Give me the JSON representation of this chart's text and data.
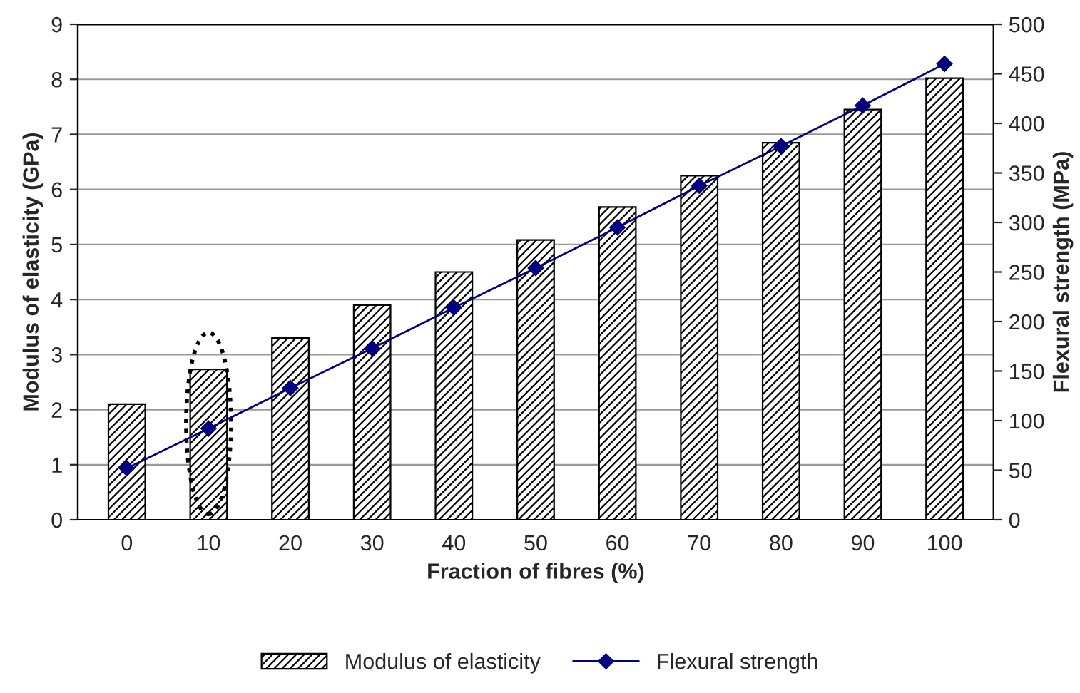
{
  "chart_data": {
    "type": "bar",
    "xlabel": "Fraction of fibres (%)",
    "ylabel": "Modulus of elasticity (GPa)",
    "y2label": "Flexural strength (MPa)",
    "categories": [
      "0",
      "10",
      "20",
      "30",
      "40",
      "50",
      "60",
      "70",
      "80",
      "90",
      "100"
    ],
    "series": [
      {
        "name": "Modulus of elasticity",
        "color": "#000000",
        "values": [
          2.1,
          2.73,
          3.3,
          3.9,
          4.5,
          5.08,
          5.68,
          6.25,
          6.85,
          7.45,
          8.02
        ]
      },
      {
        "name": "Flexural strength",
        "type": "line",
        "axis": "y2",
        "color": "#000080",
        "values": [
          52,
          92,
          133,
          173,
          214,
          254,
          295,
          337,
          377,
          418,
          460
        ]
      }
    ],
    "ylim": [
      0,
      9
    ],
    "yticks": [
      0,
      1,
      2,
      3,
      4,
      5,
      6,
      7,
      8,
      9
    ],
    "y2lim": [
      0,
      500
    ],
    "y2ticks": [
      0,
      50,
      100,
      150,
      200,
      250,
      300,
      350,
      400,
      450,
      500
    ],
    "grid": "y",
    "legend": "bottom",
    "marker": "diamond",
    "line_style": "solid"
  }
}
